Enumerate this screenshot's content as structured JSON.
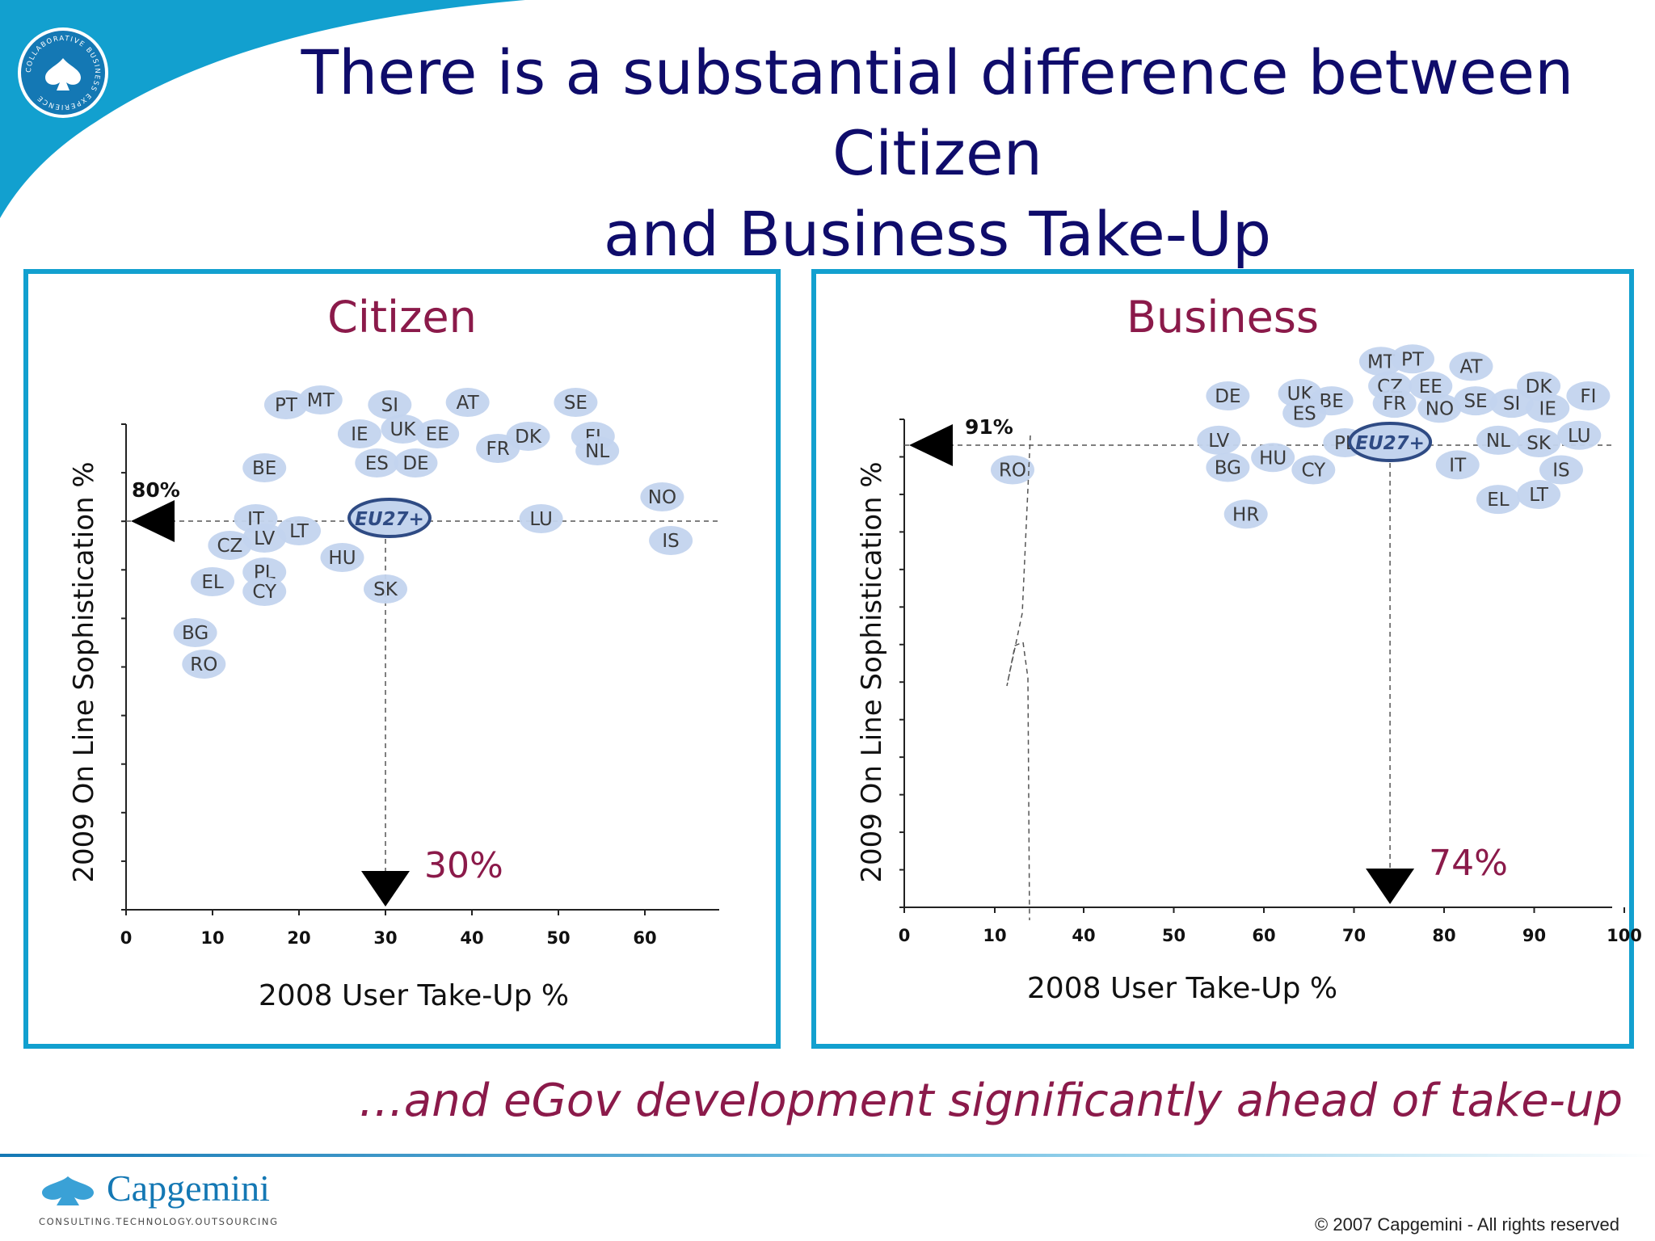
{
  "slide": {
    "title_line1": "There is a substantial difference between Citizen",
    "title_line2": "and Business Take-Up",
    "tagline": "…and eGov development significantly ahead of take-up",
    "copyright": "© 2007 Capgemini - All rights reserved"
  },
  "branding": {
    "badge_text": "COLLABORATIVE BUSINESS EXPERIENCE",
    "wordmark": "Capgemini",
    "wordmark_sub": "CONSULTING.TECHNOLOGY.OUTSOURCING",
    "badge_icon": "spade-icon",
    "accent_color": "#12a0cf",
    "title_color": "#0f0c6b",
    "heading_color": "#8b1a4a"
  },
  "chart_data": [
    {
      "type": "scatter",
      "title": "Citizen",
      "xlabel": "2008 User Take-Up %",
      "ylabel": "2009 On Line Sophistication %",
      "xticks": [
        0,
        10,
        20,
        30,
        40,
        50,
        60
      ],
      "xlim": [
        0,
        68
      ],
      "marker_color": "#c3d4ee",
      "average": {
        "label": "EU27+",
        "x": 30,
        "y": 80,
        "x_label": "30%",
        "y_label": "80%"
      },
      "points": [
        {
          "label": "PT",
          "x": 18.5,
          "y": 104
        },
        {
          "label": "MT",
          "x": 22.5,
          "y": 105
        },
        {
          "label": "SI",
          "x": 30.5,
          "y": 104
        },
        {
          "label": "AT",
          "x": 39.5,
          "y": 104.5
        },
        {
          "label": "SE",
          "x": 52,
          "y": 104.5
        },
        {
          "label": "IE",
          "x": 27,
          "y": 98
        },
        {
          "label": "UK",
          "x": 32,
          "y": 99
        },
        {
          "label": "EE",
          "x": 36,
          "y": 98
        },
        {
          "label": "DK",
          "x": 46.5,
          "y": 97.5
        },
        {
          "label": "FI",
          "x": 54,
          "y": 97.5
        },
        {
          "label": "FR",
          "x": 43,
          "y": 95
        },
        {
          "label": "NL",
          "x": 54.5,
          "y": 94.5
        },
        {
          "label": "ES",
          "x": 29,
          "y": 92
        },
        {
          "label": "DE",
          "x": 33.5,
          "y": 92
        },
        {
          "label": "BE",
          "x": 16,
          "y": 91
        },
        {
          "label": "NO",
          "x": 62,
          "y": 85
        },
        {
          "label": "IT",
          "x": 15,
          "y": 80.5
        },
        {
          "label": "LT",
          "x": 20,
          "y": 78
        },
        {
          "label": "LU",
          "x": 48,
          "y": 80.5
        },
        {
          "label": "LV",
          "x": 16,
          "y": 76.5
        },
        {
          "label": "CZ",
          "x": 12,
          "y": 75
        },
        {
          "label": "IS",
          "x": 63,
          "y": 76
        },
        {
          "label": "HU",
          "x": 25,
          "y": 72.5
        },
        {
          "label": "PL",
          "x": 16,
          "y": 69.5
        },
        {
          "label": "EL",
          "x": 10,
          "y": 67.5
        },
        {
          "label": "CY",
          "x": 16,
          "y": 65.5
        },
        {
          "label": "SK",
          "x": 30,
          "y": 66
        },
        {
          "label": "BG",
          "x": 8,
          "y": 57
        },
        {
          "label": "RO",
          "x": 9,
          "y": 50.5
        }
      ]
    },
    {
      "type": "scatter",
      "title": "Business",
      "xlabel": "2008 User Take-Up %",
      "ylabel": "2009 On Line Sophistication %",
      "xticks": [
        0,
        10,
        40,
        50,
        60,
        70,
        80,
        90,
        100
      ],
      "x_axis_break": "between 10 and 40",
      "xlim": [
        0,
        100
      ],
      "marker_color": "#c3d4ee",
      "average": {
        "label": "EU27+",
        "x": 74,
        "y": 91,
        "x_label": "74%",
        "y_label": "91%"
      },
      "points": [
        {
          "label": "MT",
          "x": 73,
          "y": 108
        },
        {
          "label": "PT",
          "x": 76.5,
          "y": 108.5
        },
        {
          "label": "AT",
          "x": 83,
          "y": 107
        },
        {
          "label": "CZ",
          "x": 74,
          "y": 103
        },
        {
          "label": "EE",
          "x": 78.5,
          "y": 103
        },
        {
          "label": "DK",
          "x": 90.5,
          "y": 103
        },
        {
          "label": "DE",
          "x": 56,
          "y": 101
        },
        {
          "label": "UK",
          "x": 64,
          "y": 101.5
        },
        {
          "label": "BE",
          "x": 67.5,
          "y": 100
        },
        {
          "label": "FR",
          "x": 74.5,
          "y": 99.5
        },
        {
          "label": "NO",
          "x": 79.5,
          "y": 98.5
        },
        {
          "label": "SE",
          "x": 83.5,
          "y": 100
        },
        {
          "label": "SI",
          "x": 87.5,
          "y": 99.5
        },
        {
          "label": "IE",
          "x": 91.5,
          "y": 98.5
        },
        {
          "label": "FI",
          "x": 96,
          "y": 101
        },
        {
          "label": "ES",
          "x": 64.5,
          "y": 97.5
        },
        {
          "label": "LV",
          "x": 55,
          "y": 92
        },
        {
          "label": "LU",
          "x": 95,
          "y": 93
        },
        {
          "label": "PL",
          "x": 69,
          "y": 91.5
        },
        {
          "label": "NL",
          "x": 86,
          "y": 92
        },
        {
          "label": "SK",
          "x": 90.5,
          "y": 91.5
        },
        {
          "label": "HU",
          "x": 61,
          "y": 88.5
        },
        {
          "label": "IT",
          "x": 81.5,
          "y": 87
        },
        {
          "label": "RO",
          "x": 16,
          "y": 86
        },
        {
          "label": "BG",
          "x": 56,
          "y": 86.5
        },
        {
          "label": "CY",
          "x": 65.5,
          "y": 86
        },
        {
          "label": "IS",
          "x": 93,
          "y": 86
        },
        {
          "label": "EL",
          "x": 86,
          "y": 80
        },
        {
          "label": "LT",
          "x": 90.5,
          "y": 81
        },
        {
          "label": "HR",
          "x": 58,
          "y": 77
        }
      ]
    }
  ]
}
